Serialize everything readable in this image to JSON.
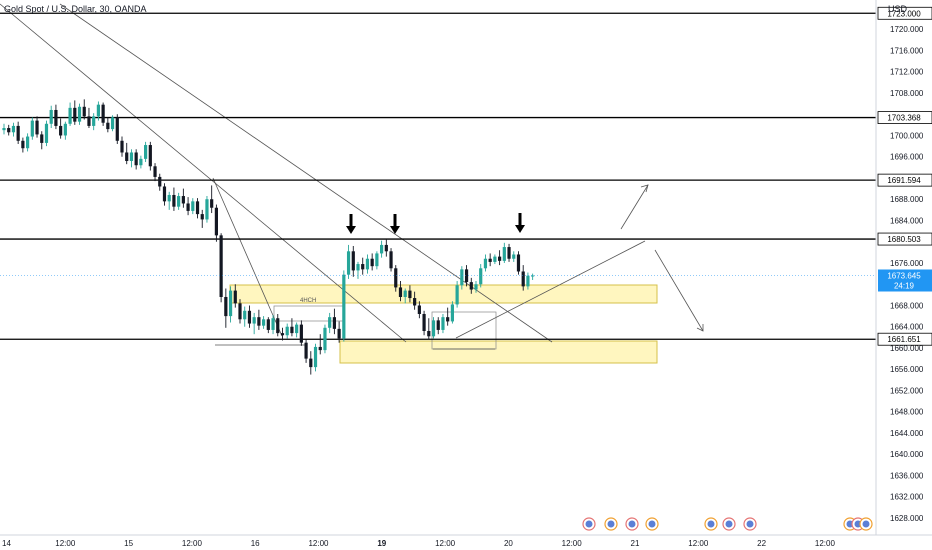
{
  "header": {
    "title": "Gold Spot / U.S. Dollar, 30, OANDA",
    "currency": "USD"
  },
  "colors": {
    "up": "#26a69a",
    "down": "#131722",
    "zone_fill": "#fff6bf",
    "zone_border": "#d4c04a",
    "level_line": "#000000",
    "last_price_bg": "#2196f3",
    "trendline": "#555555"
  },
  "price_axis": {
    "ticks": [
      1720.0,
      1716.0,
      1712.0,
      1708.0,
      1700.0,
      1696.0,
      1692.0,
      1688.0,
      1684.0,
      1676.0,
      1668.0,
      1664.0,
      1660.0,
      1656.0,
      1652.0,
      1648.0,
      1644.0,
      1640.0,
      1636.0,
      1632.0,
      1628.0
    ],
    "tick_labels": [
      "1720.000",
      "1716.000",
      "1712.000",
      "1708.000",
      "1700.000",
      "1696.000",
      "1692.000",
      "1688.000",
      "1684.000",
      "1676.000",
      "1668.000",
      "1664.000",
      "1660.000",
      "1656.000",
      "1652.000",
      "1648.000",
      "1644.000",
      "1640.000",
      "1636.000",
      "1632.000",
      "1628.000"
    ],
    "ylim": [
      1624.8,
      1725.5
    ]
  },
  "time_axis": {
    "labels": [
      {
        "text": "14",
        "pos": 0,
        "bold": false
      },
      {
        "text": "12:00",
        "pos": 1,
        "bold": false
      },
      {
        "text": "15",
        "pos": 2,
        "bold": false
      },
      {
        "text": "12:00",
        "pos": 3,
        "bold": false
      },
      {
        "text": "16",
        "pos": 4,
        "bold": false
      },
      {
        "text": "12:00",
        "pos": 5,
        "bold": false
      },
      {
        "text": "19",
        "pos": 6,
        "bold": true
      },
      {
        "text": "12:00",
        "pos": 7,
        "bold": false
      },
      {
        "text": "20",
        "pos": 8,
        "bold": false
      },
      {
        "text": "12:00",
        "pos": 9,
        "bold": false
      },
      {
        "text": "21",
        "pos": 10,
        "bold": false
      },
      {
        "text": "12:00",
        "pos": 11,
        "bold": false
      },
      {
        "text": "22",
        "pos": 12,
        "bold": false
      },
      {
        "text": "12:00",
        "pos": 13,
        "bold": false
      }
    ]
  },
  "levels": [
    {
      "price": 1723.0,
      "label": "1723.000"
    },
    {
      "price": 1703.368,
      "label": "1703.368"
    },
    {
      "price": 1691.594,
      "label": "1691.594"
    },
    {
      "price": 1680.503,
      "label": "1680.503"
    },
    {
      "price": 1661.651,
      "label": "1661.651"
    }
  ],
  "last_price": {
    "label": "1673.645",
    "countdown": "24:19"
  },
  "annotations": {
    "zone_label": "4HCH"
  },
  "chart_data": {
    "type": "candlestick",
    "symbol": "Gold Spot / U.S. Dollar",
    "interval": "30",
    "source": "OANDA",
    "candles": [
      [
        1701.0,
        1702.2,
        1700.2,
        1701.4
      ],
      [
        1701.4,
        1702.0,
        1700.0,
        1700.6
      ],
      [
        1700.6,
        1702.4,
        1699.8,
        1701.8
      ],
      [
        1701.8,
        1702.6,
        1698.4,
        1699.0
      ],
      [
        1699.0,
        1699.6,
        1696.8,
        1697.6
      ],
      [
        1697.6,
        1700.4,
        1697.0,
        1699.8
      ],
      [
        1699.8,
        1703.4,
        1699.2,
        1702.8
      ],
      [
        1702.8,
        1703.6,
        1699.6,
        1700.2
      ],
      [
        1700.2,
        1700.8,
        1697.4,
        1698.6
      ],
      [
        1698.6,
        1702.8,
        1698.0,
        1702.2
      ],
      [
        1702.2,
        1705.6,
        1701.4,
        1704.8
      ],
      [
        1704.8,
        1705.8,
        1701.2,
        1701.8
      ],
      [
        1701.8,
        1703.2,
        1699.4,
        1700.0
      ],
      [
        1700.0,
        1702.6,
        1699.2,
        1702.2
      ],
      [
        1702.2,
        1706.2,
        1701.8,
        1705.2
      ],
      [
        1705.2,
        1706.6,
        1702.0,
        1702.6
      ],
      [
        1702.6,
        1706.0,
        1702.0,
        1705.4
      ],
      [
        1705.4,
        1706.8,
        1703.0,
        1703.6
      ],
      [
        1703.6,
        1705.2,
        1701.4,
        1701.8
      ],
      [
        1701.8,
        1704.2,
        1701.0,
        1703.6
      ],
      [
        1703.6,
        1706.4,
        1702.8,
        1705.8
      ],
      [
        1705.8,
        1706.2,
        1701.8,
        1702.4
      ],
      [
        1702.4,
        1703.4,
        1700.6,
        1701.2
      ],
      [
        1701.2,
        1703.8,
        1700.8,
        1703.4
      ],
      [
        1703.4,
        1704.0,
        1698.4,
        1699.0
      ],
      [
        1699.0,
        1699.8,
        1696.0,
        1696.8
      ],
      [
        1696.8,
        1698.6,
        1694.6,
        1695.2
      ],
      [
        1695.2,
        1697.4,
        1694.0,
        1696.8
      ],
      [
        1696.8,
        1697.4,
        1693.6,
        1694.4
      ],
      [
        1694.4,
        1696.2,
        1693.8,
        1695.6
      ],
      [
        1695.6,
        1698.8,
        1695.0,
        1698.2
      ],
      [
        1698.2,
        1698.8,
        1693.4,
        1694.2
      ],
      [
        1694.2,
        1694.8,
        1691.4,
        1692.2
      ],
      [
        1692.2,
        1692.8,
        1689.6,
        1690.4
      ],
      [
        1690.4,
        1691.0,
        1686.8,
        1687.6
      ],
      [
        1687.6,
        1689.4,
        1686.0,
        1688.8
      ],
      [
        1688.8,
        1690.2,
        1685.8,
        1686.6
      ],
      [
        1686.6,
        1689.2,
        1686.0,
        1688.6
      ],
      [
        1688.6,
        1690.0,
        1686.4,
        1687.2
      ],
      [
        1687.2,
        1688.4,
        1685.0,
        1685.8
      ],
      [
        1685.8,
        1688.2,
        1685.2,
        1687.6
      ],
      [
        1687.6,
        1688.2,
        1684.4,
        1685.2
      ],
      [
        1685.2,
        1686.0,
        1682.6,
        1684.2
      ],
      [
        1684.2,
        1688.6,
        1683.6,
        1688.0
      ],
      [
        1688.0,
        1690.6,
        1685.4,
        1686.4
      ],
      [
        1686.4,
        1687.0,
        1680.0,
        1681.2
      ],
      [
        1681.2,
        1681.6,
        1668.6,
        1669.6
      ],
      [
        1669.6,
        1671.2,
        1663.8,
        1666.0
      ],
      [
        1666.0,
        1671.6,
        1664.8,
        1670.8
      ],
      [
        1670.8,
        1672.0,
        1667.6,
        1668.4
      ],
      [
        1668.4,
        1669.2,
        1664.6,
        1665.4
      ],
      [
        1665.4,
        1667.8,
        1664.0,
        1667.0
      ],
      [
        1667.0,
        1668.0,
        1663.8,
        1664.6
      ],
      [
        1664.6,
        1666.6,
        1662.6,
        1665.8
      ],
      [
        1665.8,
        1667.2,
        1663.4,
        1664.2
      ],
      [
        1664.2,
        1666.0,
        1663.6,
        1665.4
      ],
      [
        1665.4,
        1665.8,
        1662.8,
        1663.4
      ],
      [
        1663.4,
        1666.2,
        1662.6,
        1665.6
      ],
      [
        1665.6,
        1666.4,
        1662.2,
        1662.8
      ],
      [
        1662.8,
        1663.8,
        1661.4,
        1662.4
      ],
      [
        1662.4,
        1664.6,
        1661.8,
        1664.0
      ],
      [
        1664.0,
        1665.6,
        1662.2,
        1662.8
      ],
      [
        1662.8,
        1664.8,
        1662.0,
        1664.4
      ],
      [
        1664.4,
        1665.2,
        1660.4,
        1661.0
      ],
      [
        1661.0,
        1661.6,
        1657.2,
        1658.0
      ],
      [
        1658.0,
        1659.4,
        1655.0,
        1656.4
      ],
      [
        1656.4,
        1660.8,
        1655.6,
        1660.2
      ],
      [
        1660.2,
        1662.6,
        1658.8,
        1659.6
      ],
      [
        1659.6,
        1664.4,
        1659.0,
        1663.8
      ],
      [
        1663.8,
        1666.6,
        1662.8,
        1665.8
      ],
      [
        1665.8,
        1667.4,
        1662.6,
        1663.6
      ],
      [
        1663.6,
        1665.0,
        1661.0,
        1661.8
      ],
      [
        1661.8,
        1674.6,
        1661.2,
        1673.8
      ],
      [
        1673.8,
        1679.4,
        1673.0,
        1678.2
      ],
      [
        1678.2,
        1679.2,
        1673.4,
        1674.6
      ],
      [
        1674.6,
        1676.2,
        1673.0,
        1675.8
      ],
      [
        1675.8,
        1677.0,
        1673.8,
        1674.8
      ],
      [
        1674.8,
        1677.6,
        1674.0,
        1676.8
      ],
      [
        1676.8,
        1677.8,
        1674.6,
        1675.4
      ],
      [
        1675.4,
        1678.2,
        1674.8,
        1677.8
      ],
      [
        1677.8,
        1680.2,
        1677.0,
        1679.4
      ],
      [
        1679.4,
        1680.4,
        1677.2,
        1678.2
      ],
      [
        1678.2,
        1678.8,
        1674.4,
        1675.0
      ],
      [
        1675.0,
        1675.6,
        1670.6,
        1671.4
      ],
      [
        1671.4,
        1672.6,
        1668.8,
        1669.6
      ],
      [
        1669.6,
        1671.2,
        1668.4,
        1670.8
      ],
      [
        1670.8,
        1671.8,
        1668.6,
        1669.4
      ],
      [
        1669.4,
        1670.6,
        1667.2,
        1668.0
      ],
      [
        1668.0,
        1668.8,
        1665.6,
        1666.4
      ],
      [
        1666.4,
        1667.0,
        1662.4,
        1663.2
      ],
      [
        1663.2,
        1665.6,
        1661.6,
        1662.2
      ],
      [
        1662.2,
        1665.8,
        1661.8,
        1665.2
      ],
      [
        1665.2,
        1665.8,
        1662.6,
        1663.4
      ],
      [
        1663.4,
        1666.4,
        1662.8,
        1665.8
      ],
      [
        1665.8,
        1667.6,
        1664.2,
        1665.0
      ],
      [
        1665.0,
        1668.8,
        1664.6,
        1668.2
      ],
      [
        1668.2,
        1672.6,
        1667.6,
        1671.8
      ],
      [
        1671.8,
        1675.4,
        1671.0,
        1674.8
      ],
      [
        1674.8,
        1675.6,
        1671.6,
        1672.4
      ],
      [
        1672.4,
        1673.2,
        1670.2,
        1671.0
      ],
      [
        1671.0,
        1672.6,
        1670.4,
        1672.0
      ],
      [
        1672.0,
        1675.8,
        1671.4,
        1675.0
      ],
      [
        1675.0,
        1677.6,
        1674.4,
        1676.8
      ],
      [
        1676.8,
        1677.8,
        1675.4,
        1676.2
      ],
      [
        1676.2,
        1677.6,
        1675.8,
        1677.2
      ],
      [
        1677.2,
        1678.4,
        1675.6,
        1676.4
      ],
      [
        1676.4,
        1679.8,
        1676.0,
        1679.0
      ],
      [
        1679.0,
        1679.6,
        1676.2,
        1676.8
      ],
      [
        1676.8,
        1678.2,
        1676.2,
        1677.6
      ],
      [
        1677.6,
        1678.2,
        1673.8,
        1674.4
      ],
      [
        1674.4,
        1675.6,
        1670.8,
        1671.6
      ],
      [
        1671.6,
        1674.2,
        1671.0,
        1673.6
      ],
      [
        1673.6,
        1674.0,
        1672.8,
        1673.645
      ]
    ]
  }
}
